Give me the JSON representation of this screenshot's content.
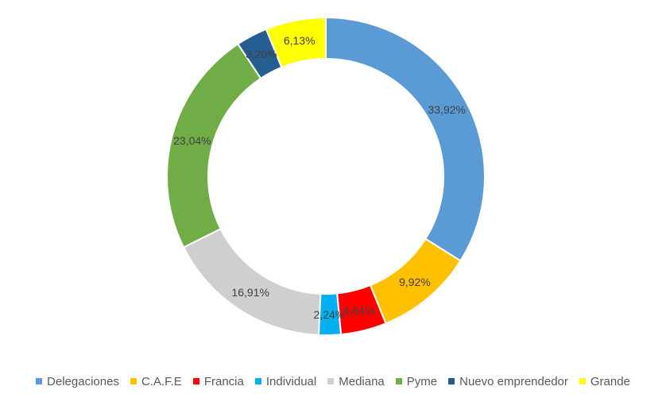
{
  "chart_data": {
    "type": "donut",
    "title": "",
    "legend_position": "bottom",
    "slices": [
      {
        "name": "Delegaciones",
        "value": 33.92,
        "label": "33,92%",
        "color": "#5B9BD5"
      },
      {
        "name": "C.A.F.E",
        "value": 9.92,
        "label": "9,92%",
        "color": "#FFC000"
      },
      {
        "name": "Francia",
        "value": 4.64,
        "label": "4,64%",
        "color": "#FF0000"
      },
      {
        "name": "Individual",
        "value": 2.24,
        "label": "2,24%",
        "color": "#00B0F0"
      },
      {
        "name": "Mediana",
        "value": 16.91,
        "label": "16,91%",
        "color": "#D0CECE"
      },
      {
        "name": "Pyme",
        "value": 23.04,
        "label": "23,04%",
        "color": "#70AD47"
      },
      {
        "name": "Nuevo emprendedor",
        "value": 3.2,
        "label": "3,20%",
        "color": "#255E91"
      },
      {
        "name": "Grande",
        "value": 6.13,
        "label": "6,13%",
        "color": "#FFFF00"
      }
    ]
  }
}
